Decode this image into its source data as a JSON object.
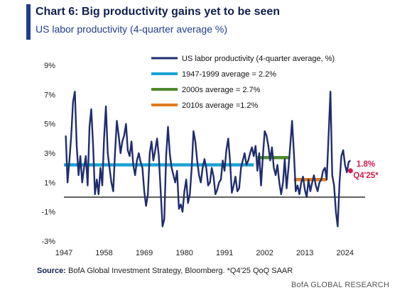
{
  "header": {
    "title": "Chart 6: Big productivity gains yet to be seen",
    "subtitle": "US labor productivity (4-quarter average %)"
  },
  "footer": {
    "source_label": "Source:",
    "source_text": "BofA Global Investment Strategy, Bloomberg. *Q4'25 QoQ SAAR",
    "brand": "BofA GLOBAL RESEARCH"
  },
  "chart_data": {
    "type": "line",
    "title": "Chart 6: Big productivity gains yet to be seen",
    "subtitle": "US labor productivity (4-quarter average %)",
    "xlabel": "",
    "ylabel": "",
    "xlim": [
      1947,
      2026
    ],
    "ylim": [
      -3,
      9
    ],
    "y_ticks": [
      -3,
      -1,
      1,
      3,
      5,
      7,
      9
    ],
    "y_tick_labels": [
      "-3%",
      "-1%",
      "1%",
      "3%",
      "5%",
      "7%",
      "9%"
    ],
    "x_ticks": [
      1947,
      1958,
      1969,
      1980,
      1991,
      2002,
      2013,
      2024
    ],
    "x_tick_labels": [
      "1947",
      "1958",
      "1969",
      "1980",
      "1991",
      "2002",
      "2013",
      "2024"
    ],
    "grid": false,
    "legend_position": "top",
    "series": [
      {
        "name": "US labor productivity (4-quarter average, %)",
        "color": "#1f2d6e",
        "x": [
          1947.5,
          1948,
          1948.5,
          1949,
          1949.5,
          1950,
          1950.5,
          1951,
          1951.5,
          1952,
          1952.5,
          1953,
          1953.5,
          1954,
          1954.5,
          1955,
          1955.5,
          1956,
          1956.5,
          1957,
          1957.5,
          1958,
          1958.5,
          1959,
          1959.5,
          1960,
          1960.5,
          1961,
          1961.5,
          1962,
          1962.5,
          1963,
          1963.5,
          1964,
          1964.5,
          1965,
          1965.5,
          1966,
          1966.5,
          1967,
          1967.5,
          1968,
          1968.5,
          1969,
          1969.5,
          1970,
          1970.5,
          1971,
          1971.5,
          1972,
          1972.5,
          1973,
          1973.5,
          1974,
          1974.5,
          1975,
          1975.5,
          1976,
          1976.5,
          1977,
          1977.5,
          1978,
          1978.5,
          1979,
          1979.5,
          1980,
          1980.5,
          1981,
          1981.5,
          1982,
          1982.5,
          1983,
          1983.5,
          1984,
          1984.5,
          1985,
          1985.5,
          1986,
          1986.5,
          1987,
          1987.5,
          1988,
          1988.5,
          1989,
          1989.5,
          1990,
          1990.5,
          1991,
          1991.5,
          1992,
          1992.5,
          1993,
          1993.5,
          1994,
          1994.5,
          1995,
          1995.5,
          1996,
          1996.5,
          1997,
          1997.5,
          1998,
          1998.5,
          1999,
          1999.5,
          2000,
          2000.5,
          2001,
          2001.5,
          2002,
          2002.5,
          2003,
          2003.5,
          2004,
          2004.5,
          2005,
          2005.5,
          2006,
          2006.5,
          2007,
          2007.5,
          2008,
          2008.5,
          2009,
          2009.5,
          2010,
          2010.5,
          2011,
          2011.5,
          2012,
          2012.5,
          2013,
          2013.5,
          2014,
          2014.5,
          2015,
          2015.5,
          2016,
          2016.5,
          2017,
          2017.5,
          2018,
          2018.5,
          2019,
          2019.5,
          2020,
          2020.5,
          2021,
          2021.5,
          2022,
          2022.5,
          2023,
          2023.5,
          2024,
          2024.5,
          2025,
          2025.5
        ],
        "values": [
          4.2,
          1.0,
          2.5,
          4.2,
          6.5,
          7.2,
          3.5,
          1.5,
          2.8,
          1.0,
          2.0,
          2.8,
          0.8,
          4.8,
          6.0,
          3.5,
          0.2,
          1.2,
          0.2,
          2.0,
          0.8,
          4.0,
          6.2,
          3.0,
          2.0,
          1.0,
          0.4,
          3.0,
          5.2,
          4.2,
          3.0,
          3.8,
          4.2,
          5.0,
          3.2,
          2.8,
          3.8,
          2.2,
          1.5,
          2.5,
          3.0,
          2.4,
          2.0,
          0.4,
          -0.6,
          0.2,
          3.0,
          3.8,
          2.5,
          3.2,
          4.0,
          2.8,
          0.4,
          -2.0,
          -1.5,
          2.8,
          4.8,
          3.0,
          2.0,
          1.5,
          1.0,
          1.8,
          -0.8,
          -0.5,
          -1.0,
          0.4,
          1.2,
          -0.4,
          0.2,
          2.0,
          4.5,
          3.8,
          2.5,
          1.5,
          1.0,
          2.0,
          2.6,
          2.0,
          0.8,
          1.0,
          2.0,
          1.4,
          0.2,
          0.5,
          1.0,
          1.2,
          2.5,
          1.8,
          3.2,
          4.0,
          2.5,
          0.3,
          0.8,
          1.4,
          0.4,
          0.6,
          2.0,
          2.5,
          3.0,
          2.2,
          2.5,
          3.0,
          3.4,
          2.8,
          3.5,
          1.8,
          3.0,
          0.8,
          2.8,
          4.5,
          4.2,
          3.5,
          2.5,
          3.4,
          2.0,
          1.5,
          2.2,
          1.0,
          0.2,
          1.0,
          2.6,
          0.6,
          2.0,
          3.5,
          5.2,
          3.0,
          0.4,
          0.8,
          0.2,
          1.0,
          1.4,
          0.5,
          0.0,
          1.2,
          0.4,
          1.0,
          1.5,
          0.8,
          0.4,
          1.0,
          1.2,
          1.8,
          2.0,
          1.2,
          4.2,
          7.2,
          1.5,
          0.8,
          -1.0,
          -2.0,
          1.0,
          2.8,
          3.2,
          2.2,
          1.7,
          2.4,
          2.5
        ]
      }
    ],
    "averages": [
      {
        "name": "1947-1999 average = 2.2%",
        "value": 2.2,
        "x": [
          1947,
          1999
        ],
        "color": "#1aa3d3"
      },
      {
        "name": "2000s average = 2.7%",
        "value": 2.7,
        "x": [
          2000,
          2009
        ],
        "color": "#4f8a2e"
      },
      {
        "name": "2010s average =1.2%",
        "value": 1.2,
        "x": [
          2010,
          2019
        ],
        "color": "#e07b1a"
      }
    ],
    "annotations": [
      {
        "text": "1.8%",
        "x": 2026,
        "y": 1.8,
        "color": "#d81b4a"
      },
      {
        "text": "Q4'25*",
        "x": 2026,
        "y": 1.8,
        "color": "#d81b4a"
      }
    ]
  }
}
